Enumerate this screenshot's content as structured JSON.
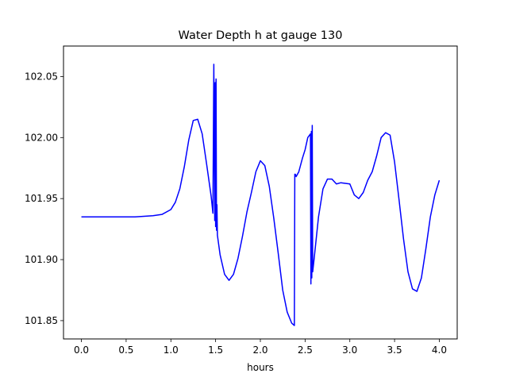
{
  "chart_data": {
    "type": "line",
    "title": "Water Depth h at gauge 130",
    "xlabel": "hours",
    "ylabel": "",
    "xlim": [
      -0.2,
      4.2
    ],
    "ylim": [
      101.835,
      102.075
    ],
    "xticks": [
      0.0,
      0.5,
      1.0,
      1.5,
      2.0,
      2.5,
      3.0,
      3.5,
      4.0
    ],
    "xtick_labels": [
      "0.0",
      "0.5",
      "1.0",
      "1.5",
      "2.0",
      "2.5",
      "3.0",
      "3.5",
      "4.0"
    ],
    "yticks": [
      101.85,
      101.9,
      101.95,
      102.0,
      102.05
    ],
    "ytick_labels": [
      "101.85",
      "101.90",
      "101.95",
      "102.00",
      "102.05"
    ],
    "grid": false,
    "series": [
      {
        "color": "#0000ff",
        "x": [
          0.0,
          0.3,
          0.6,
          0.8,
          0.9,
          1.0,
          1.05,
          1.1,
          1.15,
          1.2,
          1.25,
          1.3,
          1.35,
          1.4,
          1.45,
          1.47,
          1.48,
          1.49,
          1.495,
          1.5,
          1.505,
          1.51,
          1.515,
          1.52,
          1.55,
          1.6,
          1.65,
          1.7,
          1.75,
          1.8,
          1.85,
          1.9,
          1.95,
          2.0,
          2.05,
          2.1,
          2.15,
          2.2,
          2.25,
          2.3,
          2.35,
          2.38,
          2.385,
          2.39,
          2.4,
          2.43,
          2.47,
          2.5,
          2.53,
          2.56,
          2.565,
          2.57,
          2.575,
          2.58,
          2.585,
          2.6,
          2.65,
          2.7,
          2.75,
          2.8,
          2.85,
          2.9,
          3.0,
          3.05,
          3.1,
          3.15,
          3.2,
          3.25,
          3.3,
          3.35,
          3.4,
          3.45,
          3.5,
          3.55,
          3.6,
          3.65,
          3.7,
          3.75,
          3.8,
          3.85,
          3.9,
          3.95,
          4.0
        ],
        "y": [
          101.935,
          101.935,
          101.935,
          101.936,
          101.937,
          101.941,
          101.947,
          101.958,
          101.976,
          101.998,
          102.014,
          102.015,
          102.003,
          101.978,
          101.952,
          101.938,
          102.06,
          101.932,
          102.045,
          101.927,
          102.048,
          101.924,
          101.945,
          101.92,
          101.904,
          101.888,
          101.883,
          101.888,
          101.901,
          101.919,
          101.939,
          101.955,
          101.972,
          101.981,
          101.977,
          101.96,
          101.934,
          101.905,
          101.875,
          101.857,
          101.848,
          101.846,
          101.97,
          101.97,
          101.968,
          101.972,
          101.983,
          101.99,
          102.0,
          102.003,
          101.88,
          102.005,
          101.885,
          102.01,
          101.89,
          101.9,
          101.935,
          101.958,
          101.966,
          101.966,
          101.962,
          101.963,
          101.962,
          101.953,
          101.95,
          101.955,
          101.965,
          101.972,
          101.985,
          102.0,
          102.004,
          102.002,
          101.98,
          101.949,
          101.917,
          101.89,
          101.876,
          101.874,
          101.885,
          101.909,
          101.935,
          101.953,
          101.965
        ]
      }
    ]
  }
}
